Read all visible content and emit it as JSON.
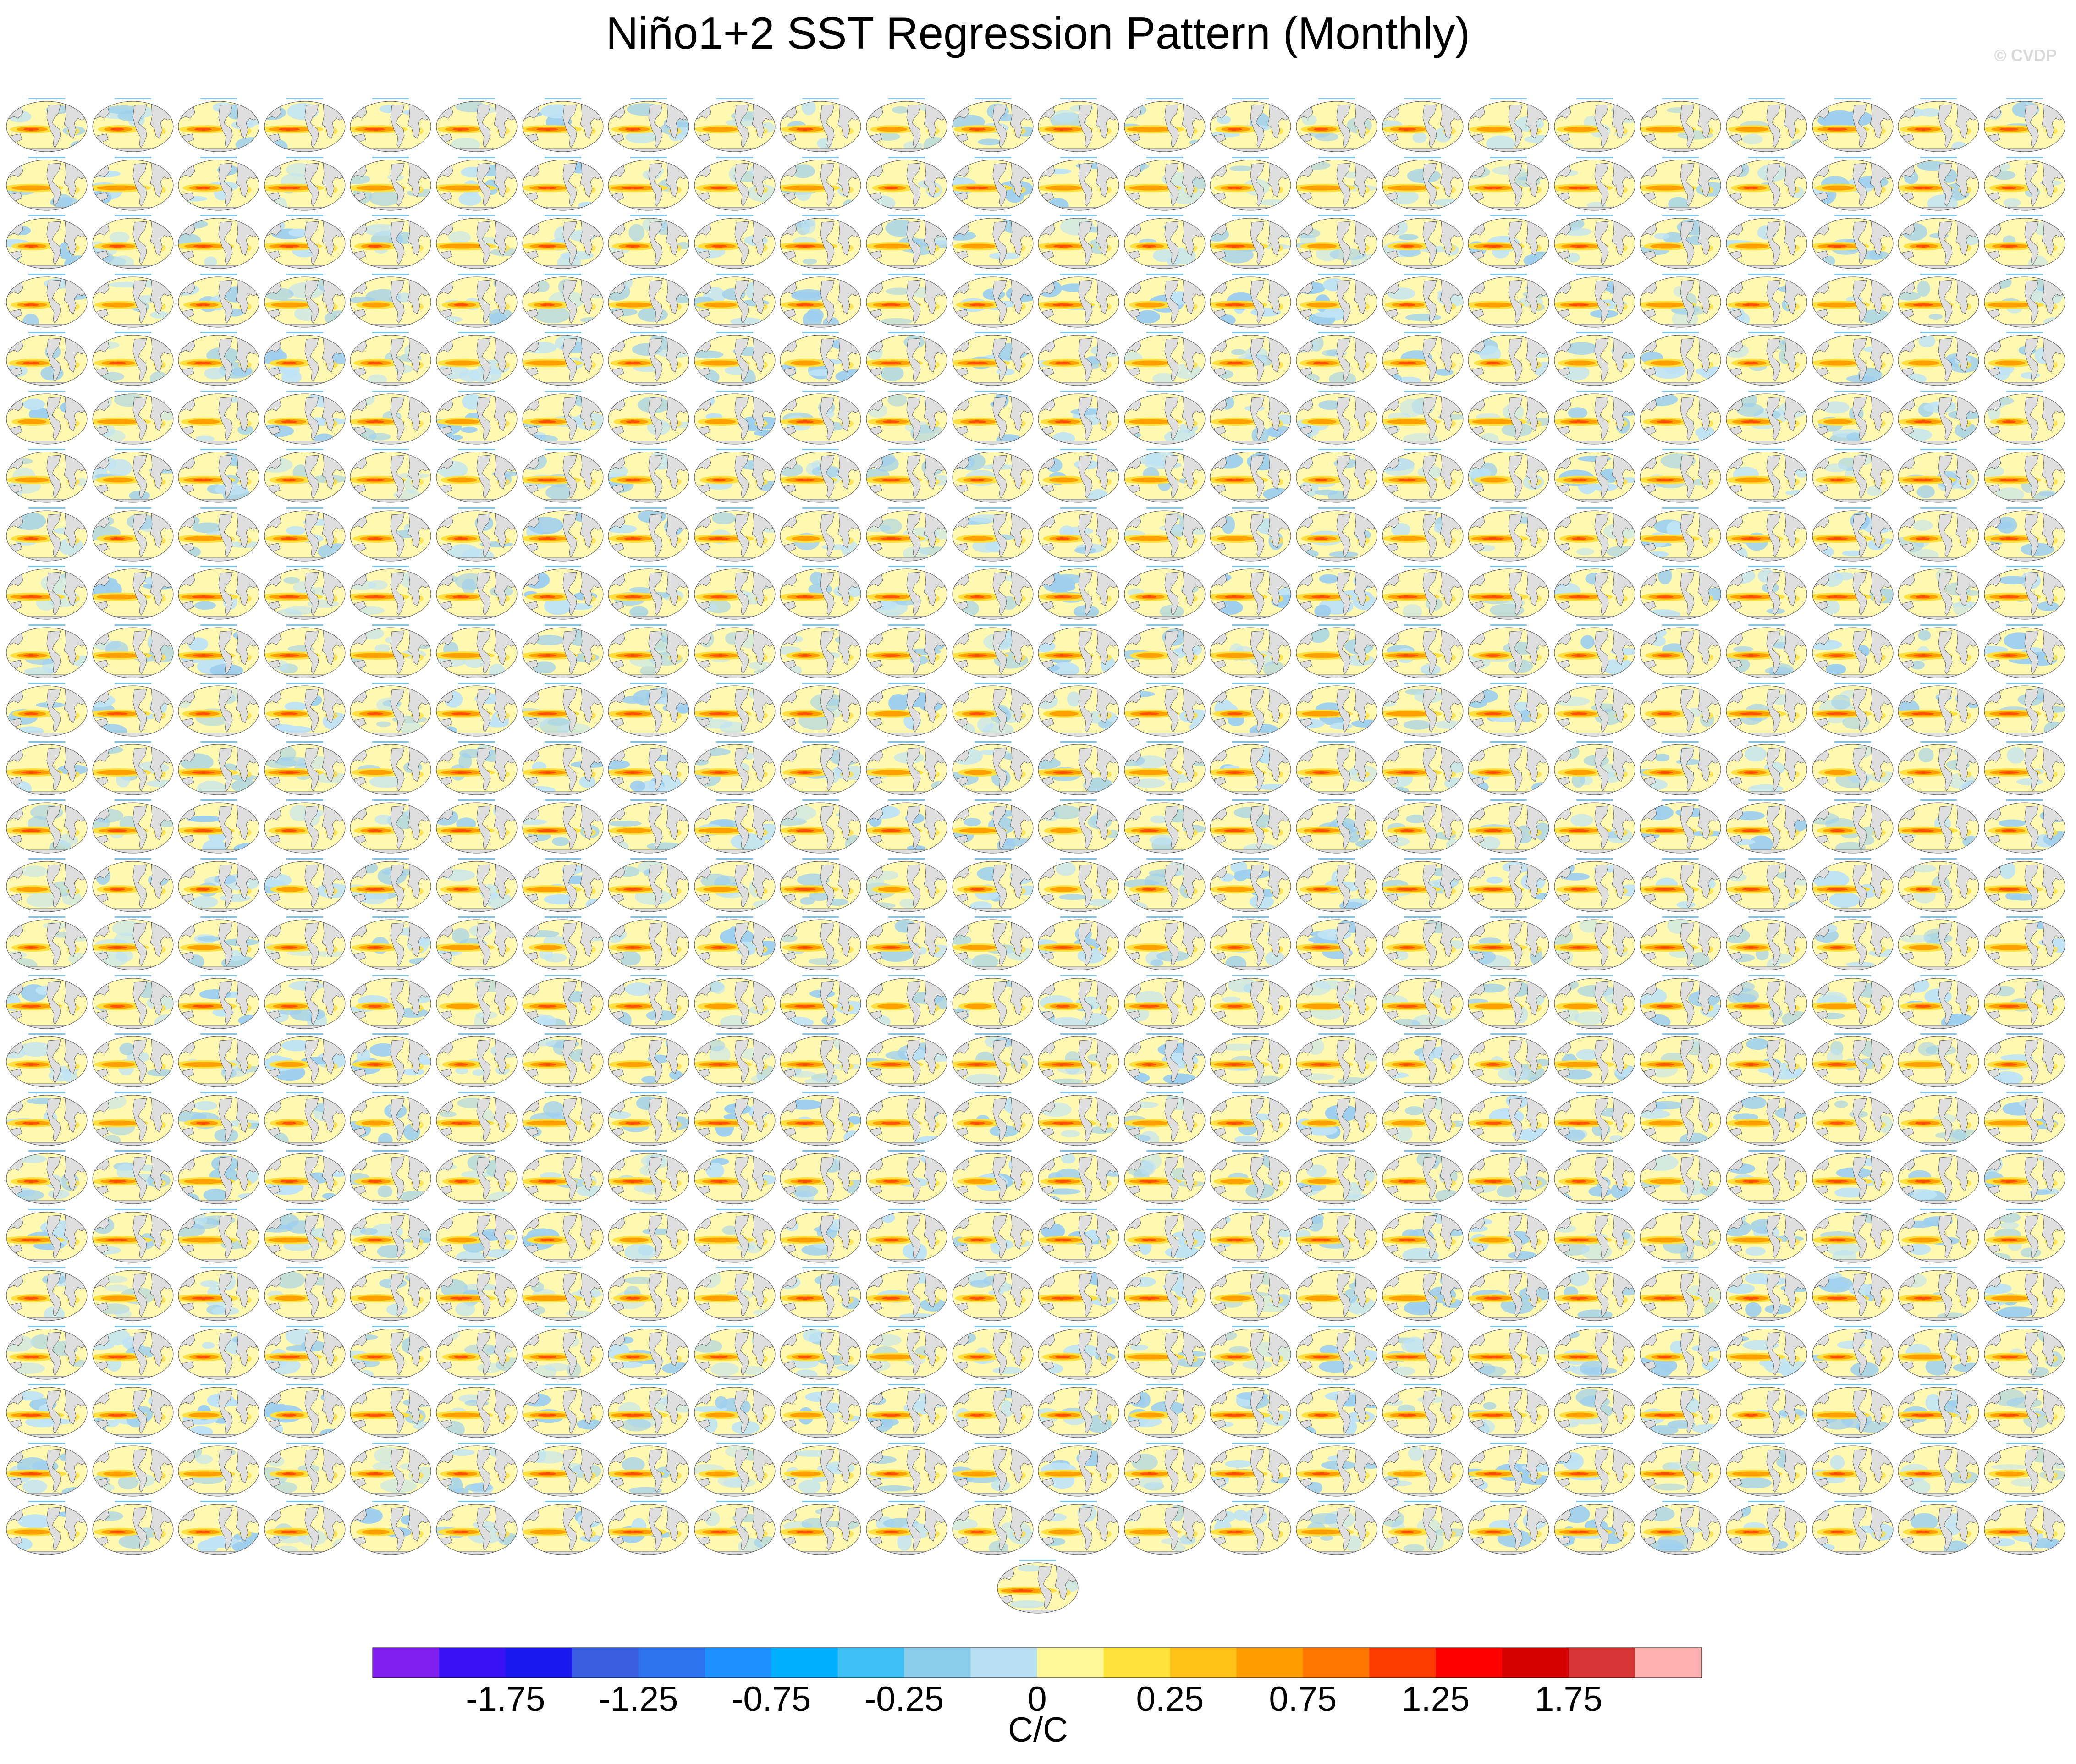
{
  "title": "Niño1+2 SST Regression Pattern (Monthly)",
  "watermark": "© CVDP",
  "colors": {
    "land": "#dedede",
    "ocean_neutral": "#fff8b0",
    "ocean_light_blue": "#bfe3f5",
    "ocean_blue": "#9ecfee",
    "warm_yellow": "#ffe040",
    "warm_orange": "#ffa000",
    "warm_red": "#ff5000",
    "coast": "#555555"
  },
  "chart_data": {
    "type": "heatmap",
    "title": "Niño1+2 SST Regression Pattern (Monthly)",
    "panel_grid": {
      "rows": 25,
      "columns": 24,
      "extra_panels": 1
    },
    "panel_projection": "Robinson (global)",
    "colorbar": {
      "unit": "C/C",
      "boundaries": [
        -2.25,
        -2,
        -1.75,
        -1.5,
        -1.25,
        -1,
        -0.75,
        -0.5,
        -0.25,
        -0.1,
        0,
        0.1,
        0.25,
        0.5,
        0.75,
        1,
        1.25,
        1.5,
        1.75,
        2,
        2.25
      ],
      "colors": [
        "#7f1ff0",
        "#3812f5",
        "#1919f0",
        "#3a5fe0",
        "#2d72ee",
        "#1e90ff",
        "#00b0ff",
        "#3fc0f5",
        "#8ccdec",
        "#b8dff2",
        "#fff79a",
        "#ffe33a",
        "#ffc117",
        "#ff9e00",
        "#ff7600",
        "#ff3c00",
        "#ff0000",
        "#d40000",
        "#d63636",
        "#ffb0b0"
      ],
      "tick_labels": [
        "-1.75",
        "-1.25",
        "-0.75",
        "-0.25",
        "0",
        "0.25",
        "0.75",
        "1.25",
        "1.75"
      ],
      "tick_values": [
        -1.75,
        -1.25,
        -0.75,
        -0.25,
        0,
        0.25,
        0.75,
        1.25,
        1.75
      ]
    }
  }
}
